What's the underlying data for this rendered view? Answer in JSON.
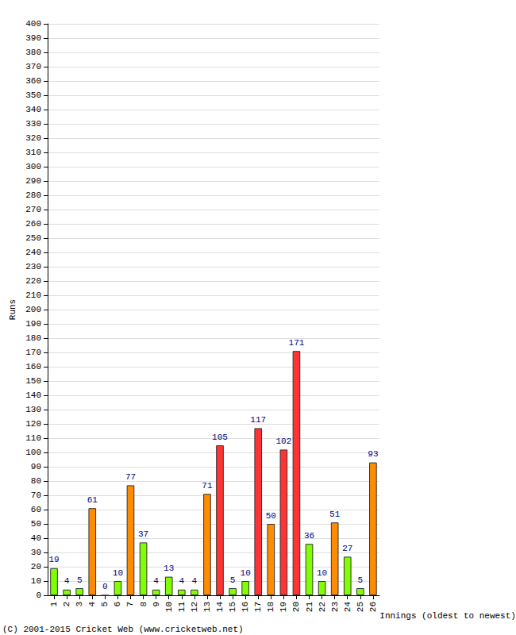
{
  "chart_data": {
    "type": "bar",
    "categories": [
      "1",
      "2",
      "3",
      "4",
      "5",
      "6",
      "7",
      "8",
      "9",
      "10",
      "11",
      "12",
      "13",
      "14",
      "15",
      "16",
      "17",
      "18",
      "19",
      "20",
      "21",
      "22",
      "23",
      "24",
      "25",
      "26"
    ],
    "values": [
      19,
      4,
      5,
      61,
      0,
      10,
      77,
      37,
      4,
      13,
      4,
      4,
      71,
      105,
      5,
      10,
      117,
      50,
      102,
      171,
      36,
      10,
      51,
      27,
      5,
      93
    ],
    "colors": [
      "#80ff00",
      "#80ff00",
      "#80ff00",
      "#ff8c00",
      "#80ff00",
      "#80ff00",
      "#ff8c00",
      "#80ff00",
      "#80ff00",
      "#80ff00",
      "#80ff00",
      "#80ff00",
      "#ff8c00",
      "#ff3333",
      "#80ff00",
      "#80ff00",
      "#ff3333",
      "#ff8c00",
      "#ff3333",
      "#ff3333",
      "#80ff00",
      "#80ff00",
      "#ff8c00",
      "#80ff00",
      "#80ff00",
      "#ff8c00"
    ],
    "x_label": "Innings (oldest to newest)",
    "y_label": "Runs",
    "annotations": [
      "(C) 2001-2015 Cricket Web (www.cricketweb.net)"
    ],
    "ylim": [
      0,
      400
    ],
    "yticks": [
      0,
      10,
      20,
      30,
      40,
      50,
      60,
      70,
      80,
      90,
      100,
      110,
      120,
      130,
      140,
      150,
      160,
      170,
      180,
      190,
      200,
      210,
      220,
      230,
      240,
      250,
      260,
      270,
      280,
      290,
      300,
      310,
      320,
      330,
      340,
      350,
      360,
      370,
      380,
      390,
      400
    ],
    "grid": true,
    "data_labels": true
  }
}
